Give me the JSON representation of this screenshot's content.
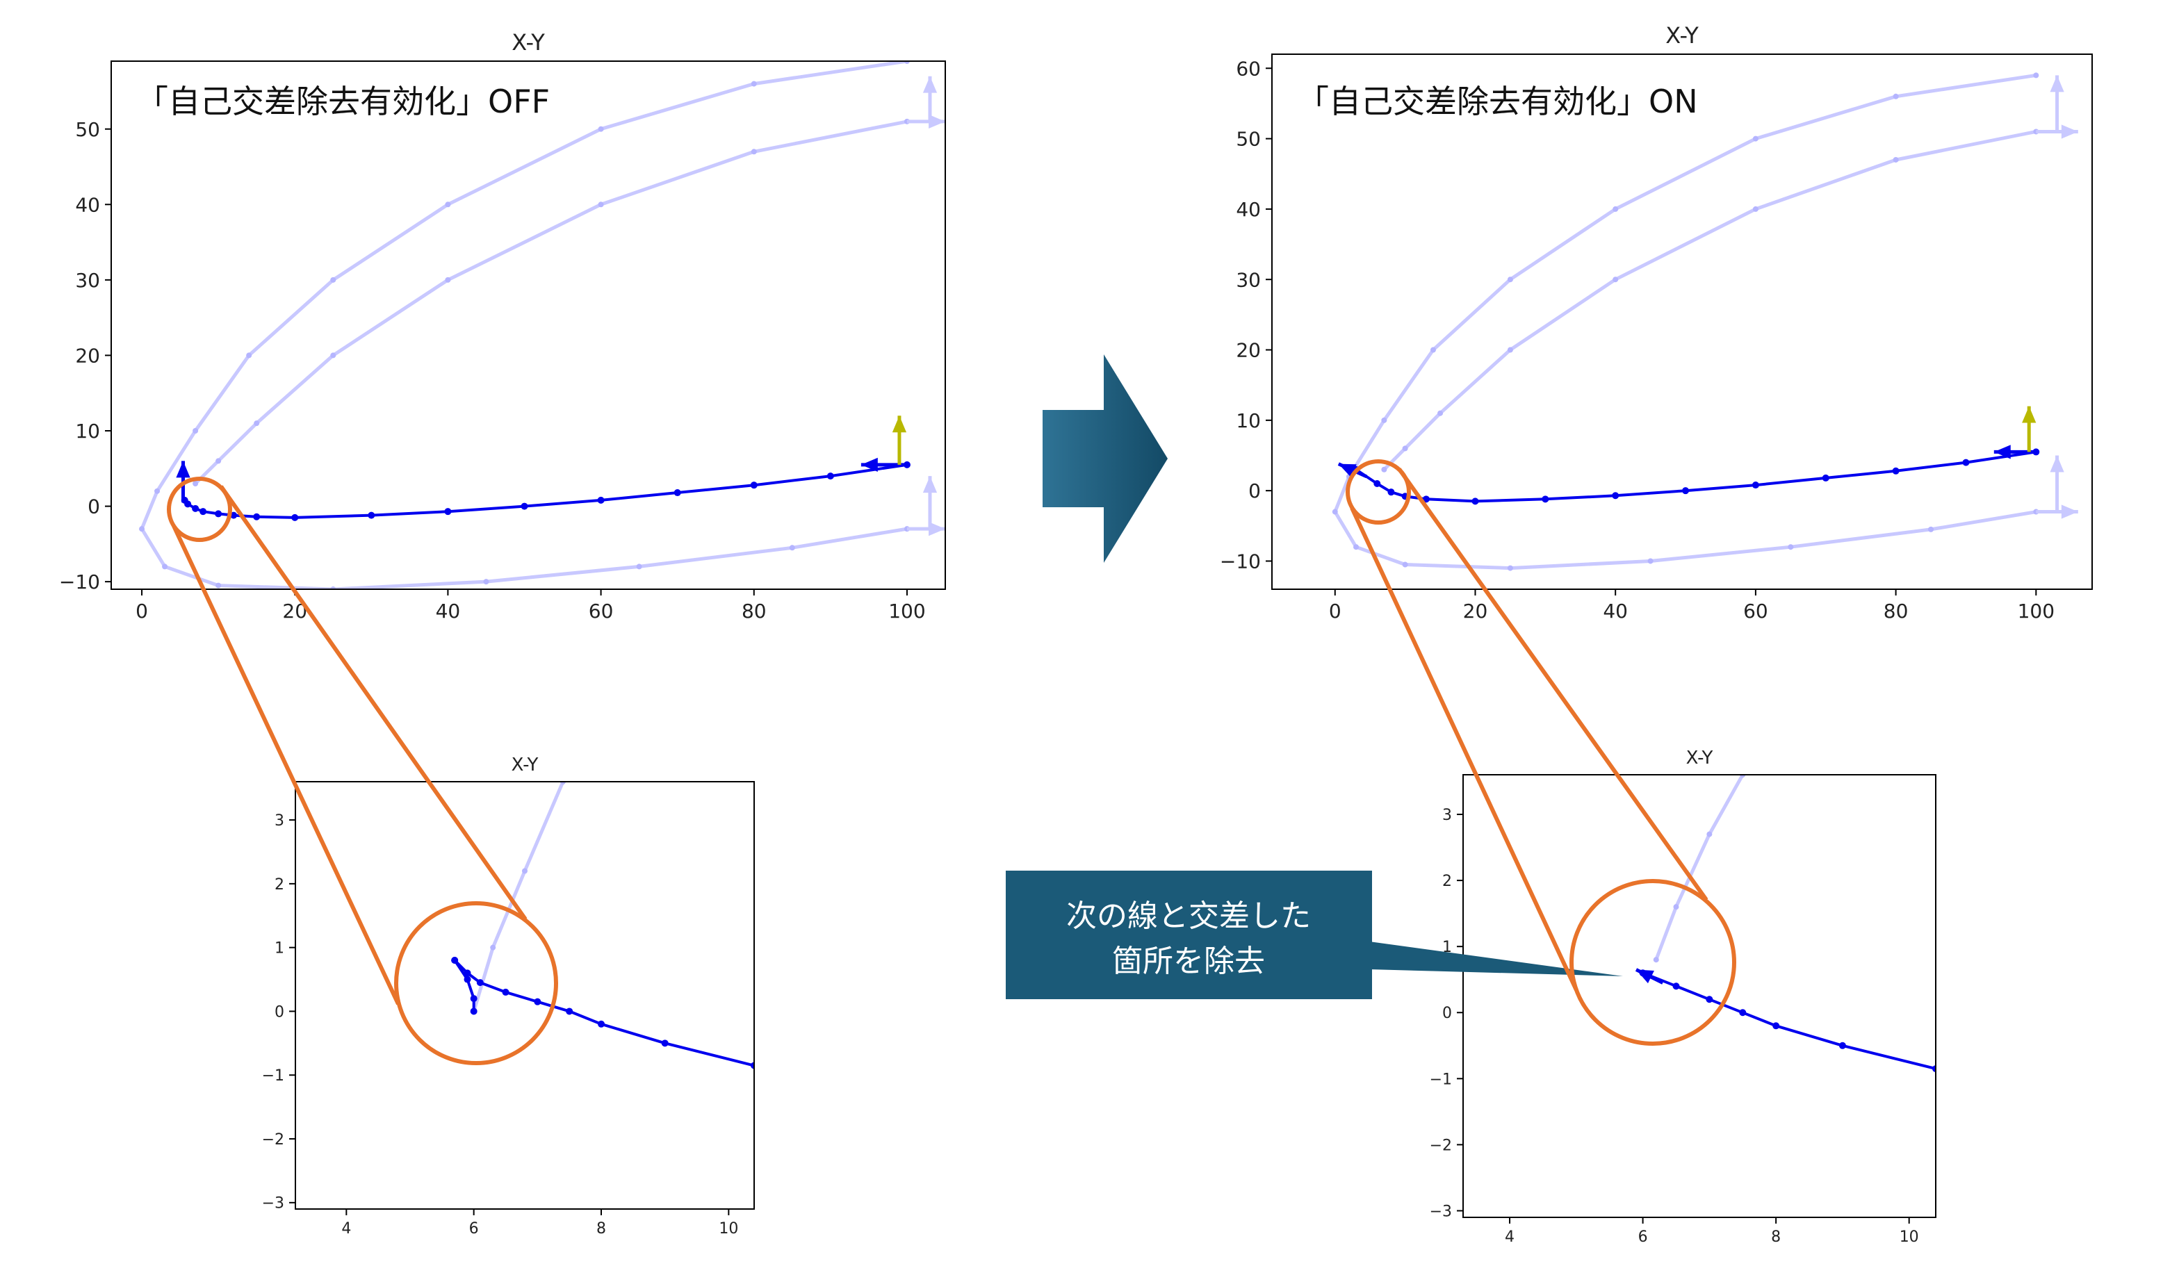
{
  "chart_data": [
    {
      "id": "big-off",
      "type": "line",
      "title": "X-Y",
      "label": "「自己交差除去有効化」OFF",
      "xlim": [
        -4,
        105
      ],
      "ylim": [
        -11,
        59
      ],
      "xticks": [
        0,
        20,
        40,
        60,
        80,
        100
      ],
      "yticks": [
        -10,
        0,
        10,
        20,
        30,
        40,
        50
      ],
      "series": [
        {
          "role": "faint-lane-left",
          "style": "faint",
          "points": [
            [
              100,
              59
            ],
            [
              80,
              56
            ],
            [
              60,
              50
            ],
            [
              40,
              40
            ],
            [
              25,
              30
            ],
            [
              14,
              20
            ],
            [
              7,
              10
            ],
            [
              2,
              2
            ],
            [
              0,
              -3
            ],
            [
              3,
              -8
            ],
            [
              10,
              -10.5
            ],
            [
              25,
              -11
            ],
            [
              45,
              -10
            ],
            [
              65,
              -8
            ],
            [
              85,
              -5.5
            ],
            [
              100,
              -3
            ]
          ]
        },
        {
          "role": "faint-lane-right",
          "style": "faint",
          "points": [
            [
              100,
              51
            ],
            [
              80,
              47
            ],
            [
              60,
              40
            ],
            [
              40,
              30
            ],
            [
              25,
              20
            ],
            [
              15,
              11
            ],
            [
              10,
              6
            ],
            [
              7,
              3
            ]
          ]
        },
        {
          "role": "reference-path",
          "style": "main",
          "points": [
            [
              5.6,
              0.8
            ],
            [
              6,
              0.3
            ],
            [
              7,
              -0.3
            ],
            [
              8,
              -0.7
            ],
            [
              10,
              -1
            ],
            [
              12,
              -1.2
            ],
            [
              15,
              -1.4
            ],
            [
              20,
              -1.5
            ],
            [
              30,
              -1.2
            ],
            [
              40,
              -0.7
            ],
            [
              50,
              0
            ],
            [
              60,
              0.8
            ],
            [
              70,
              1.8
            ],
            [
              80,
              2.8
            ],
            [
              90,
              4
            ],
            [
              100,
              5.5
            ]
          ]
        }
      ],
      "arrows": [
        {
          "role": "start-heading",
          "color": "#0000ee",
          "from": [
            100,
            5.5
          ],
          "to": [
            94,
            5.5
          ]
        },
        {
          "role": "end-heading",
          "color": "#0000ee",
          "from": [
            5.4,
            0.5
          ],
          "to": [
            5.4,
            6
          ]
        },
        {
          "role": "goal-heading",
          "color": "#b8b800",
          "from": [
            99,
            5.5
          ],
          "to": [
            99,
            12
          ]
        },
        {
          "role": "lane-end-up",
          "color": "#c9c9ff",
          "from": [
            103,
            51
          ],
          "to": [
            103,
            57
          ]
        },
        {
          "role": "lane-end-up",
          "color": "#c9c9ff",
          "from": [
            103,
            -3
          ],
          "to": [
            103,
            4
          ]
        },
        {
          "role": "lane-end-right",
          "color": "#c9c9ff",
          "from": [
            100,
            51
          ],
          "to": [
            105,
            51
          ]
        },
        {
          "role": "lane-end-right",
          "color": "#c9c9ff",
          "from": [
            100,
            -3
          ],
          "to": [
            105,
            -3
          ]
        }
      ]
    },
    {
      "id": "big-on",
      "type": "line",
      "title": "X-Y",
      "label": "「自己交差除去有効化」ON",
      "xlim": [
        -9,
        108
      ],
      "ylim": [
        -14,
        62
      ],
      "xticks": [
        0,
        20,
        40,
        60,
        80,
        100
      ],
      "yticks": [
        -10,
        0,
        10,
        20,
        30,
        40,
        50,
        60
      ],
      "series": [
        {
          "role": "faint-lane-left",
          "style": "faint",
          "points": [
            [
              100,
              59
            ],
            [
              80,
              56
            ],
            [
              60,
              50
            ],
            [
              40,
              40
            ],
            [
              25,
              30
            ],
            [
              14,
              20
            ],
            [
              7,
              10
            ],
            [
              2,
              2
            ],
            [
              0,
              -3
            ],
            [
              3,
              -8
            ],
            [
              10,
              -10.5
            ],
            [
              25,
              -11
            ],
            [
              45,
              -10
            ],
            [
              65,
              -8
            ],
            [
              85,
              -5.5
            ],
            [
              100,
              -3
            ]
          ]
        },
        {
          "role": "faint-lane-right",
          "style": "faint",
          "points": [
            [
              100,
              51
            ],
            [
              80,
              47
            ],
            [
              60,
              40
            ],
            [
              40,
              30
            ],
            [
              25,
              20
            ],
            [
              15,
              11
            ],
            [
              10,
              6
            ],
            [
              7,
              3
            ]
          ]
        },
        {
          "role": "reference-path",
          "style": "main",
          "points": [
            [
              3,
              3
            ],
            [
              6,
              1
            ],
            [
              8,
              -0.2
            ],
            [
              10,
              -0.8
            ],
            [
              13,
              -1.2
            ],
            [
              20,
              -1.5
            ],
            [
              30,
              -1.2
            ],
            [
              40,
              -0.7
            ],
            [
              50,
              0
            ],
            [
              60,
              0.8
            ],
            [
              70,
              1.8
            ],
            [
              80,
              2.8
            ],
            [
              90,
              4
            ],
            [
              100,
              5.5
            ]
          ]
        }
      ],
      "arrows": [
        {
          "role": "start-heading",
          "color": "#0000ee",
          "from": [
            100,
            5.5
          ],
          "to": [
            94,
            5.5
          ]
        },
        {
          "role": "end-heading",
          "color": "#0000ee",
          "from": [
            4.5,
            2
          ],
          "to": [
            0.5,
            3.8
          ]
        },
        {
          "role": "goal-heading",
          "color": "#b8b800",
          "from": [
            99,
            5.5
          ],
          "to": [
            99,
            12
          ]
        },
        {
          "role": "lane-end-up",
          "color": "#c9c9ff",
          "from": [
            103,
            51
          ],
          "to": [
            103,
            59
          ]
        },
        {
          "role": "lane-end-up",
          "color": "#c9c9ff",
          "from": [
            103,
            -3
          ],
          "to": [
            103,
            5
          ]
        },
        {
          "role": "lane-end-right",
          "color": "#c9c9ff",
          "from": [
            100,
            51
          ],
          "to": [
            106,
            51
          ]
        },
        {
          "role": "lane-end-right",
          "color": "#c9c9ff",
          "from": [
            100,
            -3
          ],
          "to": [
            106,
            -3
          ]
        }
      ]
    },
    {
      "id": "zoom-off",
      "type": "line",
      "title": "X-Y",
      "xlim": [
        3.2,
        10.4
      ],
      "ylim": [
        -3.1,
        3.6
      ],
      "xticks": [
        4,
        6,
        8,
        10
      ],
      "yticks": [
        -3,
        -2,
        -1,
        0,
        1,
        2,
        3
      ],
      "series": [
        {
          "role": "faint-lane",
          "style": "faint",
          "points": [
            [
              6,
              0
            ],
            [
              6.3,
              1
            ],
            [
              6.8,
              2.2
            ],
            [
              7.4,
              3.6
            ]
          ]
        },
        {
          "role": "reference-path",
          "style": "main",
          "points": [
            [
              5.7,
              0.8
            ],
            [
              5.9,
              0.6
            ],
            [
              6.1,
              0.45
            ],
            [
              6.5,
              0.3
            ],
            [
              7,
              0.15
            ],
            [
              7.5,
              0
            ],
            [
              8,
              -0.2
            ],
            [
              9,
              -0.5
            ],
            [
              10.4,
              -0.85
            ]
          ]
        },
        {
          "role": "removed-tail",
          "style": "main",
          "points": [
            [
              5.7,
              0.8
            ],
            [
              5.9,
              0.5
            ],
            [
              6,
              0.2
            ],
            [
              6,
              0
            ]
          ]
        }
      ],
      "arrows": []
    },
    {
      "id": "zoom-on",
      "type": "line",
      "title": "X-Y",
      "xlim": [
        3.3,
        10.4
      ],
      "ylim": [
        -3.1,
        3.6
      ],
      "xticks": [
        4,
        6,
        8,
        10
      ],
      "yticks": [
        -3,
        -2,
        -1,
        0,
        1,
        2,
        3
      ],
      "series": [
        {
          "role": "faint-lane",
          "style": "faint",
          "points": [
            [
              6.2,
              0.8
            ],
            [
              6.5,
              1.6
            ],
            [
              7,
              2.7
            ],
            [
              7.5,
              3.6
            ]
          ]
        },
        {
          "role": "reference-path",
          "style": "main",
          "points": [
            [
              6,
              0.6
            ],
            [
              6.5,
              0.4
            ],
            [
              7,
              0.2
            ],
            [
              7.5,
              0
            ],
            [
              8,
              -0.2
            ],
            [
              9,
              -0.5
            ],
            [
              10.4,
              -0.85
            ]
          ]
        }
      ],
      "arrows": [
        {
          "role": "end-heading",
          "color": "#0000ee",
          "from": [
            6.3,
            0.45
          ],
          "to": [
            5.9,
            0.65
          ]
        }
      ]
    }
  ],
  "annotations": {
    "callout_line1": "次の線と交差した",
    "callout_line2": "箇所を除去"
  },
  "colors": {
    "path": "#0000ee",
    "faint": "#c8c8ff",
    "goal_arrow": "#b8b800",
    "highlight": "#e8732a",
    "shape": "#1f5a7a",
    "callout": "#1b5a78"
  }
}
